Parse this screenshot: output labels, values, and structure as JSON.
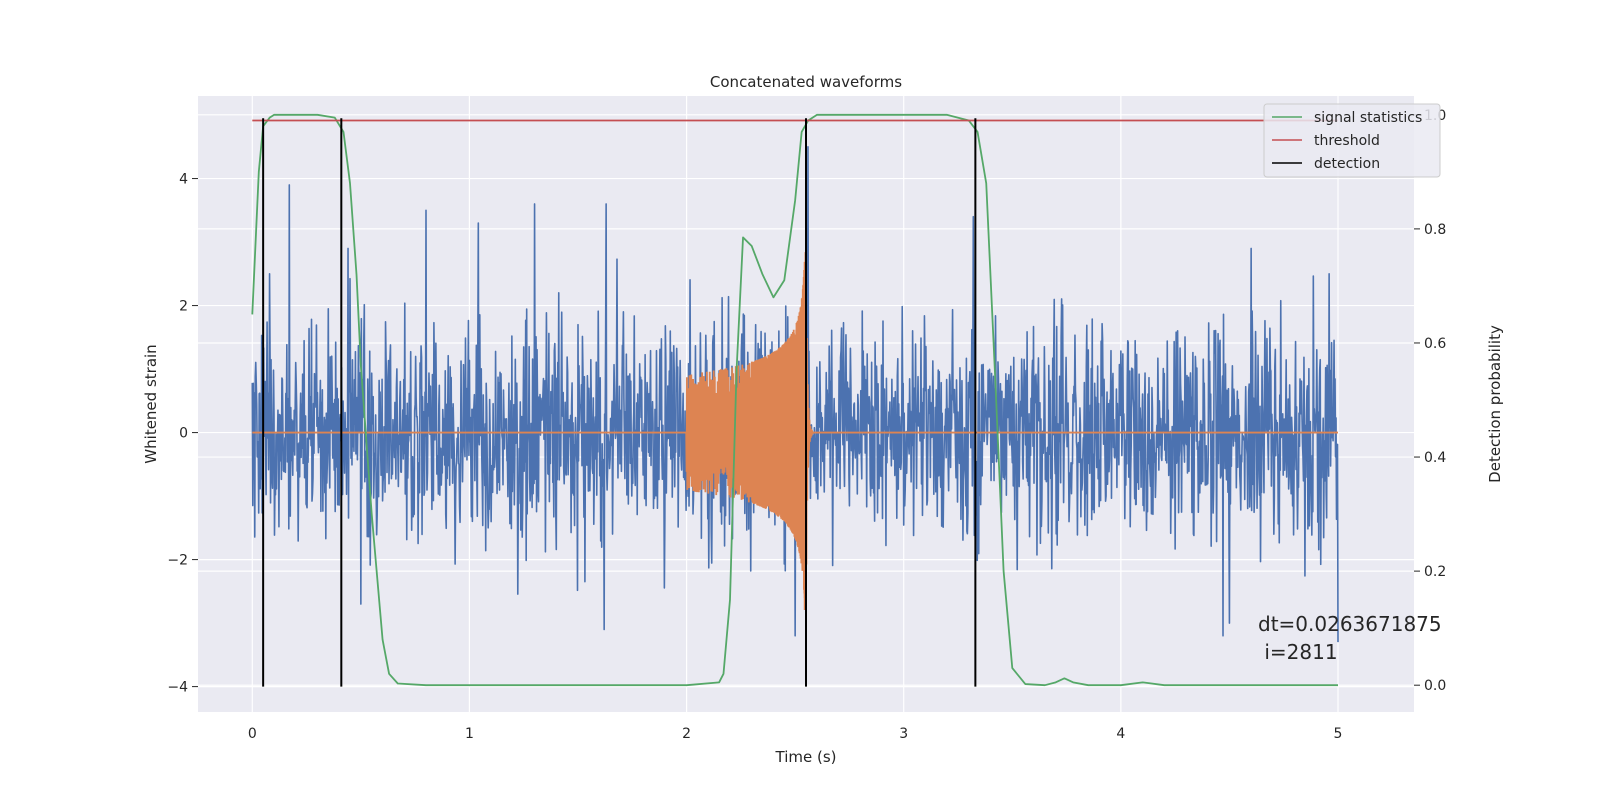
{
  "chart_data": {
    "type": "line",
    "title": "Concatenated waveforms",
    "xlabel": "Time (s)",
    "ylabel": "Whitened strain",
    "y2label": "Detection probability",
    "xlim": [
      -0.25,
      5.35
    ],
    "ylim": [
      -4.4,
      5.3
    ],
    "y2lim": [
      -0.047,
      1.033
    ],
    "xticks": [
      "0",
      "1",
      "2",
      "3",
      "4",
      "5"
    ],
    "xtick_values": [
      0,
      1,
      2,
      3,
      4,
      5
    ],
    "yticks": [
      "−4",
      "−2",
      "0",
      "2",
      "4"
    ],
    "ytick_values": [
      -4,
      -2,
      0,
      2,
      4
    ],
    "y2ticks": [
      "0.0",
      "0.2",
      "0.4",
      "0.6",
      "0.8",
      "1.0"
    ],
    "y2tick_values": [
      0.0,
      0.2,
      0.4,
      0.6,
      0.8,
      1.0
    ],
    "grid": true,
    "legend_position": "top-right",
    "legend": [
      "signal statistics",
      "threshold",
      "detection"
    ],
    "colors": {
      "strain": "#4c72b0",
      "template": "#dd8452",
      "signal_statistics": "#55a868",
      "threshold": "#c44e52",
      "detection": "#000000",
      "axes_bg": "#eaeaf2",
      "grid": "#ffffff"
    },
    "noise_strain": {
      "x_range": [
        0.0,
        5.0
      ],
      "approx_range": [
        -3.3,
        4.5
      ],
      "peaks_high": [
        [
          0.08,
          2.5
        ],
        [
          0.17,
          3.9
        ],
        [
          0.44,
          2.9
        ],
        [
          0.8,
          3.5
        ],
        [
          1.04,
          3.3
        ],
        [
          1.3,
          3.6
        ],
        [
          1.63,
          3.6
        ],
        [
          2.5,
          3.2
        ],
        [
          2.56,
          4.5
        ],
        [
          3.32,
          3.4
        ],
        [
          4.6,
          2.9
        ],
        [
          4.96,
          2.5
        ]
      ],
      "peaks_low": [
        [
          0.5,
          -2.7
        ],
        [
          1.62,
          -3.1
        ],
        [
          2.5,
          -3.2
        ],
        [
          4.47,
          -3.2
        ],
        [
          4.5,
          -3.0
        ],
        [
          5.0,
          -3.3
        ]
      ]
    },
    "series": [
      {
        "name": "signal statistics",
        "axis": "right",
        "x": [
          0.0,
          0.03,
          0.05,
          0.08,
          0.1,
          0.15,
          0.3,
          0.38,
          0.42,
          0.45,
          0.48,
          0.5,
          0.55,
          0.6,
          0.63,
          0.67,
          0.8,
          1.5,
          2.0,
          2.15,
          2.17,
          2.2,
          2.23,
          2.26,
          2.3,
          2.35,
          2.4,
          2.45,
          2.5,
          2.53,
          2.56,
          2.6,
          2.8,
          3.2,
          3.3,
          3.34,
          3.38,
          3.42,
          3.46,
          3.5,
          3.56,
          3.65,
          3.7,
          3.74,
          3.78,
          3.85,
          4.0,
          4.1,
          4.2,
          5.0
        ],
        "y": [
          0.65,
          0.9,
          0.98,
          0.995,
          1.0,
          1.0,
          1.0,
          0.995,
          0.97,
          0.88,
          0.72,
          0.56,
          0.3,
          0.08,
          0.02,
          0.003,
          0.0,
          0.0,
          0.0,
          0.005,
          0.02,
          0.15,
          0.55,
          0.785,
          0.77,
          0.72,
          0.68,
          0.71,
          0.85,
          0.97,
          0.99,
          1.0,
          1.0,
          1.0,
          0.99,
          0.97,
          0.88,
          0.55,
          0.2,
          0.03,
          0.002,
          0.0,
          0.005,
          0.012,
          0.005,
          0.0,
          0.0,
          0.005,
          0.0,
          0.0
        ]
      },
      {
        "name": "threshold",
        "axis": "right",
        "x": [
          0.0,
          5.0
        ],
        "y": [
          0.99,
          0.99
        ]
      }
    ],
    "injected_waveform": {
      "axis": "left",
      "x_range": [
        0.0,
        5.0
      ],
      "chirp_start": 2.0,
      "merger": 2.55,
      "ringdown_end": 2.58,
      "peak_amplitude": 2.9
    },
    "detections": [
      0.05,
      0.41,
      2.55,
      3.33
    ],
    "annotation": {
      "lines": [
        "dt=0.0263671875",
        " i=2811"
      ],
      "x": 4.5,
      "y": -3.1
    }
  }
}
